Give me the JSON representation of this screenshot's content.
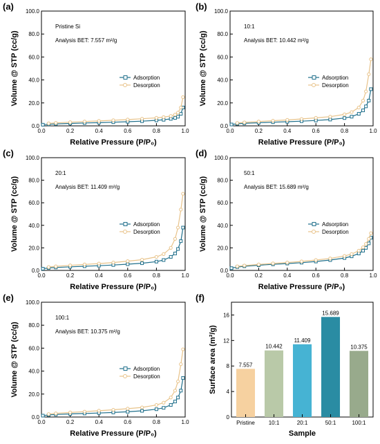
{
  "colors": {
    "adsorption": "#1f6f8b",
    "desorption": "#e8c38a",
    "bars": [
      "#f6d1a0",
      "#b9c9a8",
      "#46b3d3",
      "#2a8ca3",
      "#98aa8c"
    ]
  },
  "chart_data": [
    {
      "type": "line",
      "panel": "(a)",
      "notes": [
        "Pristine Si",
        "Analysis BET: 7.557 m²/g"
      ],
      "xlabel": "Relative Pressure (P/P₀)",
      "ylabel": "Volume @ STP (cc/g)",
      "xlim": [
        0,
        1.0
      ],
      "ylim": [
        0,
        100
      ],
      "xticks": [
        "0.0",
        "0.2",
        "0.4",
        "0.6",
        "0.8",
        "1.0"
      ],
      "yticks": [
        "0.0",
        "20.0",
        "40.0",
        "60.0",
        "80.0",
        "100.0"
      ],
      "legend_position": "center-right",
      "series": [
        {
          "name": "Adsorption",
          "points": [
            [
              0.01,
              1.0
            ],
            [
              0.05,
              1.4
            ],
            [
              0.1,
              1.7
            ],
            [
              0.2,
              2.1
            ],
            [
              0.3,
              2.5
            ],
            [
              0.4,
              2.8
            ],
            [
              0.5,
              3.2
            ],
            [
              0.6,
              3.6
            ],
            [
              0.7,
              4.1
            ],
            [
              0.8,
              4.8
            ],
            [
              0.85,
              5.3
            ],
            [
              0.9,
              6.1
            ],
            [
              0.93,
              6.9
            ],
            [
              0.95,
              8.0
            ],
            [
              0.97,
              10.5
            ],
            [
              0.985,
              16.0
            ]
          ]
        },
        {
          "name": "Desorption",
          "points": [
            [
              0.985,
              25.0
            ],
            [
              0.97,
              16.0
            ],
            [
              0.95,
              11.5
            ],
            [
              0.93,
              9.8
            ],
            [
              0.9,
              8.6
            ],
            [
              0.85,
              7.6
            ],
            [
              0.8,
              7.0
            ],
            [
              0.7,
              6.2
            ],
            [
              0.6,
              5.5
            ],
            [
              0.5,
              4.9
            ],
            [
              0.4,
              4.3
            ],
            [
              0.3,
              3.8
            ],
            [
              0.2,
              3.2
            ],
            [
              0.1,
              2.6
            ],
            [
              0.05,
              2.2
            ]
          ]
        }
      ]
    },
    {
      "type": "line",
      "panel": "(b)",
      "notes": [
        "10:1",
        "Analysis BET: 10.442 m²/g"
      ],
      "xlabel": "Relative Pressure (P/P₀)",
      "ylabel": "Volume @ STP (cc/g)",
      "xlim": [
        0,
        1.0
      ],
      "ylim": [
        0,
        100
      ],
      "xticks": [
        "0.0",
        "0.2",
        "0.4",
        "0.6",
        "0.8",
        "1.0"
      ],
      "yticks": [
        "0.0",
        "20.0",
        "40.0",
        "60.0",
        "80.0",
        "100.0"
      ],
      "legend_position": "center-right",
      "series": [
        {
          "name": "Adsorption",
          "points": [
            [
              0.01,
              1.2
            ],
            [
              0.05,
              1.8
            ],
            [
              0.1,
              2.2
            ],
            [
              0.2,
              2.7
            ],
            [
              0.3,
              3.2
            ],
            [
              0.4,
              3.6
            ],
            [
              0.5,
              4.1
            ],
            [
              0.6,
              4.7
            ],
            [
              0.7,
              5.5
            ],
            [
              0.8,
              6.8
            ],
            [
              0.85,
              8.0
            ],
            [
              0.9,
              10.5
            ],
            [
              0.93,
              13.5
            ],
            [
              0.95,
              17.0
            ],
            [
              0.97,
              22.0
            ],
            [
              0.985,
              32.0
            ]
          ]
        },
        {
          "name": "Desorption",
          "points": [
            [
              0.985,
              58.0
            ],
            [
              0.97,
              45.0
            ],
            [
              0.95,
              30.0
            ],
            [
              0.93,
              22.0
            ],
            [
              0.9,
              16.0
            ],
            [
              0.85,
              12.0
            ],
            [
              0.8,
              10.0
            ],
            [
              0.7,
              8.0
            ],
            [
              0.6,
              7.0
            ],
            [
              0.5,
              6.0
            ],
            [
              0.4,
              5.2
            ],
            [
              0.3,
              4.5
            ],
            [
              0.2,
              3.8
            ],
            [
              0.1,
              3.0
            ],
            [
              0.05,
              2.5
            ]
          ]
        }
      ]
    },
    {
      "type": "line",
      "panel": "(c)",
      "notes": [
        "20:1",
        "Analysis BET: 11.409 m²/g"
      ],
      "xlabel": "Relative Pressure (P/P₀)",
      "ylabel": "Volume @ STP (cc/g)",
      "xlim": [
        0,
        1.0
      ],
      "ylim": [
        0,
        100
      ],
      "xticks": [
        "0.0",
        "0.2",
        "0.4",
        "0.6",
        "0.8",
        "1.0"
      ],
      "yticks": [
        "0.0",
        "20.0",
        "40.0",
        "60.0",
        "80.0",
        "100.0"
      ],
      "legend_position": "center-right",
      "series": [
        {
          "name": "Adsorption",
          "points": [
            [
              0.01,
              1.5
            ],
            [
              0.05,
              2.2
            ],
            [
              0.1,
              2.6
            ],
            [
              0.2,
              3.2
            ],
            [
              0.3,
              3.7
            ],
            [
              0.4,
              4.2
            ],
            [
              0.5,
              4.8
            ],
            [
              0.6,
              5.5
            ],
            [
              0.7,
              6.4
            ],
            [
              0.8,
              7.8
            ],
            [
              0.85,
              9.2
            ],
            [
              0.9,
              12.0
            ],
            [
              0.93,
              15.0
            ],
            [
              0.95,
              19.0
            ],
            [
              0.97,
              26.0
            ],
            [
              0.985,
              38.0
            ]
          ]
        },
        {
          "name": "Desorption",
          "points": [
            [
              0.985,
              68.0
            ],
            [
              0.97,
              54.0
            ],
            [
              0.95,
              38.0
            ],
            [
              0.93,
              28.0
            ],
            [
              0.9,
              20.0
            ],
            [
              0.85,
              14.5
            ],
            [
              0.8,
              12.0
            ],
            [
              0.7,
              9.5
            ],
            [
              0.6,
              8.2
            ],
            [
              0.5,
              7.0
            ],
            [
              0.4,
              6.1
            ],
            [
              0.3,
              5.3
            ],
            [
              0.2,
              4.5
            ],
            [
              0.1,
              3.6
            ],
            [
              0.05,
              3.0
            ]
          ]
        }
      ]
    },
    {
      "type": "line",
      "panel": "(d)",
      "notes": [
        "50:1",
        "Analysis BET: 15.689 m²/g"
      ],
      "xlabel": "Relative Pressure (P/P₀)",
      "ylabel": "Volume @ STP (cc/g)",
      "xlim": [
        0,
        1.0
      ],
      "ylim": [
        0,
        100
      ],
      "xticks": [
        "0.0",
        "0.2",
        "0.4",
        "0.6",
        "0.8",
        "1.0"
      ],
      "yticks": [
        "0.0",
        "20.0",
        "40.0",
        "60.0",
        "80.0",
        "100.0"
      ],
      "legend_position": "center-right",
      "series": [
        {
          "name": "Adsorption",
          "points": [
            [
              0.01,
              2.0
            ],
            [
              0.05,
              3.0
            ],
            [
              0.1,
              3.7
            ],
            [
              0.2,
              4.6
            ],
            [
              0.3,
              5.4
            ],
            [
              0.4,
              6.1
            ],
            [
              0.5,
              6.9
            ],
            [
              0.6,
              7.9
            ],
            [
              0.7,
              9.2
            ],
            [
              0.8,
              11.0
            ],
            [
              0.85,
              12.5
            ],
            [
              0.9,
              15.0
            ],
            [
              0.93,
              17.5
            ],
            [
              0.95,
              20.0
            ],
            [
              0.97,
              24.0
            ],
            [
              0.985,
              29.0
            ]
          ]
        },
        {
          "name": "Desorption",
          "points": [
            [
              0.985,
              33.0
            ],
            [
              0.97,
              28.0
            ],
            [
              0.95,
              23.5
            ],
            [
              0.93,
              20.5
            ],
            [
              0.9,
              17.5
            ],
            [
              0.85,
              14.5
            ],
            [
              0.8,
              12.8
            ],
            [
              0.7,
              10.6
            ],
            [
              0.6,
              9.2
            ],
            [
              0.5,
              8.0
            ],
            [
              0.4,
              7.0
            ],
            [
              0.3,
              6.2
            ],
            [
              0.2,
              5.3
            ],
            [
              0.1,
              4.3
            ],
            [
              0.05,
              3.6
            ]
          ]
        }
      ]
    },
    {
      "type": "line",
      "panel": "(e)",
      "notes": [
        "100:1",
        "Analysis BET: 10.375 m²/g"
      ],
      "xlabel": "Relative Pressure (P/P₀)",
      "ylabel": "Volume @ STP (cc/g)",
      "xlim": [
        0,
        1.0
      ],
      "ylim": [
        0,
        100
      ],
      "xticks": [
        "0.0",
        "0.2",
        "0.4",
        "0.6",
        "0.8",
        "1.0"
      ],
      "yticks": [
        "0.0",
        "20.0",
        "40.0",
        "60.0",
        "80.0",
        "100.0"
      ],
      "legend_position": "center-right",
      "series": [
        {
          "name": "Adsorption",
          "points": [
            [
              0.01,
              1.2
            ],
            [
              0.05,
              1.8
            ],
            [
              0.1,
              2.2
            ],
            [
              0.2,
              2.7
            ],
            [
              0.3,
              3.1
            ],
            [
              0.4,
              3.5
            ],
            [
              0.5,
              4.0
            ],
            [
              0.6,
              4.6
            ],
            [
              0.7,
              5.4
            ],
            [
              0.8,
              6.8
            ],
            [
              0.85,
              8.0
            ],
            [
              0.9,
              10.5
            ],
            [
              0.93,
              13.5
            ],
            [
              0.95,
              17.0
            ],
            [
              0.97,
              23.0
            ],
            [
              0.985,
              34.0
            ]
          ]
        },
        {
          "name": "Desorption",
          "points": [
            [
              0.985,
              59.0
            ],
            [
              0.97,
              46.0
            ],
            [
              0.95,
              31.0
            ],
            [
              0.93,
              23.0
            ],
            [
              0.9,
              17.0
            ],
            [
              0.85,
              12.5
            ],
            [
              0.8,
              10.5
            ],
            [
              0.7,
              8.4
            ],
            [
              0.6,
              7.3
            ],
            [
              0.5,
              6.3
            ],
            [
              0.4,
              5.5
            ],
            [
              0.3,
              4.7
            ],
            [
              0.2,
              4.0
            ],
            [
              0.1,
              3.2
            ],
            [
              0.05,
              2.6
            ]
          ]
        }
      ]
    },
    {
      "type": "bar",
      "panel": "(f)",
      "xlabel": "Sample",
      "ylabel": "Surface area (m²/g)",
      "ylim": [
        0,
        18
      ],
      "yticks": [
        "0",
        "4",
        "8",
        "12",
        "16"
      ],
      "categories": [
        "Pristine",
        "10:1",
        "20:1",
        "50:1",
        "100:1"
      ],
      "values": [
        7.557,
        10.442,
        11.409,
        15.689,
        10.375
      ],
      "data_labels": [
        "7.557",
        "10.442",
        "11.409",
        "15.689",
        "10.375"
      ]
    }
  ]
}
